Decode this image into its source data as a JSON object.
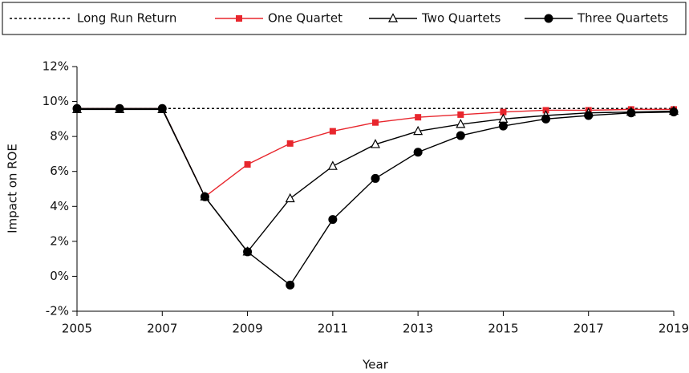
{
  "chart_data": {
    "type": "line",
    "x": [
      2005,
      2006,
      2007,
      2008,
      2009,
      2010,
      2011,
      2012,
      2013,
      2014,
      2015,
      2016,
      2017,
      2018,
      2019
    ],
    "series": [
      {
        "name": "Long Run Return",
        "color": "#000000",
        "dash": "dotted",
        "marker": "none",
        "values": [
          9.6,
          9.6,
          9.6,
          9.6,
          9.6,
          9.6,
          9.6,
          9.6,
          9.6,
          9.6,
          9.6,
          9.6,
          9.6,
          9.6,
          9.6
        ]
      },
      {
        "name": "One Quartet",
        "color": "#e8262d",
        "marker": "square",
        "values": [
          9.6,
          9.6,
          9.6,
          4.55,
          6.4,
          7.6,
          8.3,
          8.8,
          9.1,
          9.25,
          9.4,
          9.5,
          9.5,
          9.55,
          9.55
        ]
      },
      {
        "name": "Two Quartets",
        "color": "#000000",
        "marker": "triangle",
        "values": [
          9.55,
          9.55,
          9.55,
          4.55,
          1.4,
          4.45,
          6.3,
          7.55,
          8.3,
          8.7,
          9.0,
          9.2,
          9.35,
          9.4,
          9.45
        ]
      },
      {
        "name": "Three Quartets",
        "color": "#000000",
        "marker": "circle",
        "values": [
          9.6,
          9.6,
          9.6,
          4.55,
          1.4,
          -0.5,
          3.25,
          5.6,
          7.1,
          8.05,
          8.6,
          9.0,
          9.2,
          9.35,
          9.4
        ]
      }
    ],
    "xlim": [
      2005,
      2019
    ],
    "xticks": [
      2005,
      2007,
      2009,
      2011,
      2013,
      2015,
      2017,
      2019
    ],
    "ylim": [
      -2,
      12
    ],
    "yticks": [
      {
        "value": -2,
        "label": "-2%"
      },
      {
        "value": 0,
        "label": "0%"
      },
      {
        "value": 2,
        "label": "2%"
      },
      {
        "value": 4,
        "label": "4%"
      },
      {
        "value": 6,
        "label": "6%"
      },
      {
        "value": 8,
        "label": "8%"
      },
      {
        "value": 10,
        "label": "10%"
      },
      {
        "value": 12,
        "label": "12%"
      }
    ],
    "xlabel": "Year",
    "ylabel": "Impact on ROE",
    "legend": "top",
    "grid": false
  }
}
